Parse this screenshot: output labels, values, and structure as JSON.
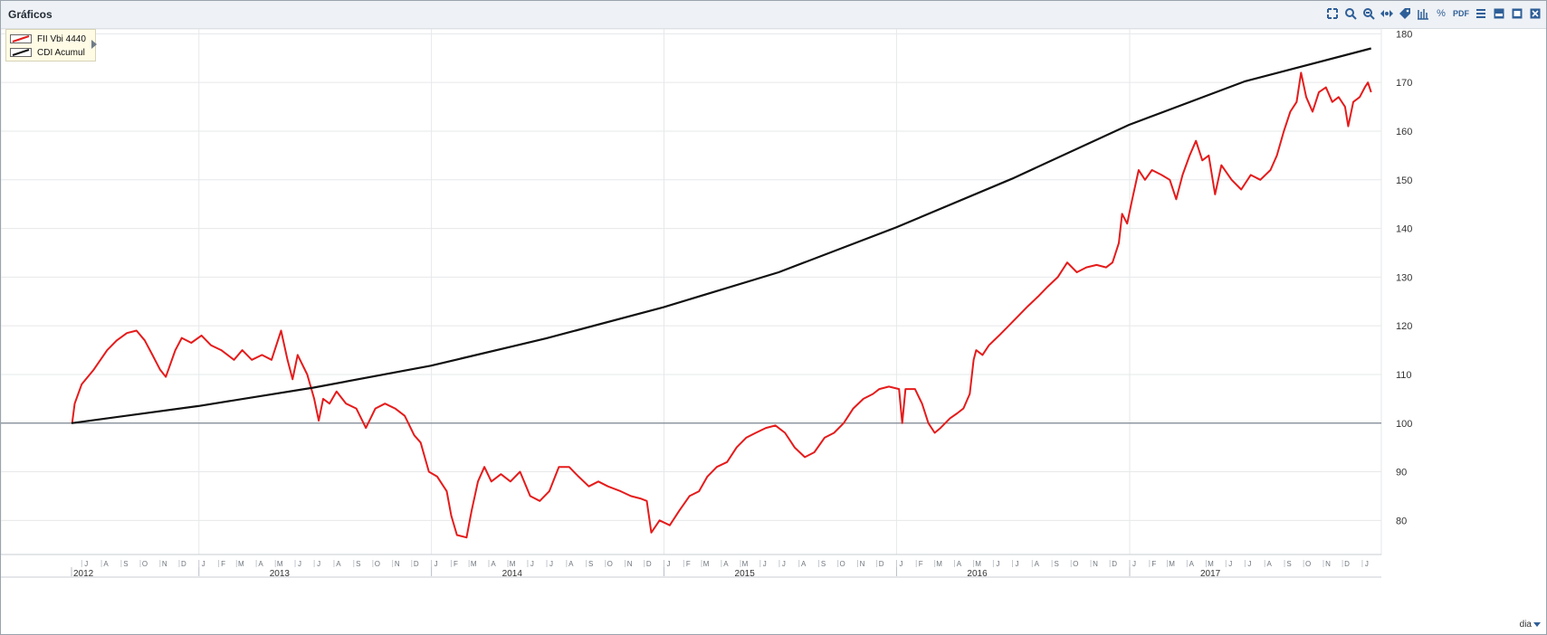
{
  "window": {
    "title": "Gráficos"
  },
  "toolbar": {
    "icons": [
      "expand-icon",
      "zoom-in-icon",
      "zoom-out-icon",
      "pan-icon",
      "tag-icon",
      "candles-icon",
      "percent-icon",
      "pdf-icon",
      "menu-icon",
      "restore-icon",
      "maximize-icon",
      "close-icon"
    ],
    "pdf_label": "PDF",
    "percent_label": "%"
  },
  "legend": {
    "items": [
      {
        "name": "FII Vbi 4440",
        "color": "#e51b1b"
      },
      {
        "name": "CDI Acumul",
        "color": "#111111"
      }
    ]
  },
  "period_selector": {
    "value": "dia"
  },
  "chart_data": {
    "type": "line",
    "xlim": [
      "2012-06-15",
      "2018-01-31"
    ],
    "ylim": [
      73,
      181
    ],
    "y_ticks": [
      80,
      90,
      100,
      110,
      120,
      130,
      140,
      150,
      160,
      170,
      180
    ],
    "reference_line": 100,
    "grid": true,
    "legend_placement": "top-left",
    "x_month_labels": [
      {
        "date": "2012-07-01",
        "label": "J"
      },
      {
        "date": "2012-08-01",
        "label": "A"
      },
      {
        "date": "2012-09-01",
        "label": "S"
      },
      {
        "date": "2012-10-01",
        "label": "O"
      },
      {
        "date": "2012-11-01",
        "label": "N"
      },
      {
        "date": "2012-12-01",
        "label": "D"
      },
      {
        "date": "2013-01-01",
        "label": "J"
      },
      {
        "date": "2013-02-01",
        "label": "F"
      },
      {
        "date": "2013-03-01",
        "label": "M"
      },
      {
        "date": "2013-04-01",
        "label": "A"
      },
      {
        "date": "2013-05-01",
        "label": "M"
      },
      {
        "date": "2013-06-01",
        "label": "J"
      },
      {
        "date": "2013-07-01",
        "label": "J"
      },
      {
        "date": "2013-08-01",
        "label": "A"
      },
      {
        "date": "2013-09-01",
        "label": "S"
      },
      {
        "date": "2013-10-01",
        "label": "O"
      },
      {
        "date": "2013-11-01",
        "label": "N"
      },
      {
        "date": "2013-12-01",
        "label": "D"
      },
      {
        "date": "2014-01-01",
        "label": "J"
      },
      {
        "date": "2014-02-01",
        "label": "F"
      },
      {
        "date": "2014-03-01",
        "label": "M"
      },
      {
        "date": "2014-04-01",
        "label": "A"
      },
      {
        "date": "2014-05-01",
        "label": "M"
      },
      {
        "date": "2014-06-01",
        "label": "J"
      },
      {
        "date": "2014-07-01",
        "label": "J"
      },
      {
        "date": "2014-08-01",
        "label": "A"
      },
      {
        "date": "2014-09-01",
        "label": "S"
      },
      {
        "date": "2014-10-01",
        "label": "O"
      },
      {
        "date": "2014-11-01",
        "label": "N"
      },
      {
        "date": "2014-12-01",
        "label": "D"
      },
      {
        "date": "2015-01-01",
        "label": "J"
      },
      {
        "date": "2015-02-01",
        "label": "F"
      },
      {
        "date": "2015-03-01",
        "label": "M"
      },
      {
        "date": "2015-04-01",
        "label": "A"
      },
      {
        "date": "2015-05-01",
        "label": "M"
      },
      {
        "date": "2015-06-01",
        "label": "J"
      },
      {
        "date": "2015-07-01",
        "label": "J"
      },
      {
        "date": "2015-08-01",
        "label": "A"
      },
      {
        "date": "2015-09-01",
        "label": "S"
      },
      {
        "date": "2015-10-01",
        "label": "O"
      },
      {
        "date": "2015-11-01",
        "label": "N"
      },
      {
        "date": "2015-12-01",
        "label": "D"
      },
      {
        "date": "2016-01-01",
        "label": "J"
      },
      {
        "date": "2016-02-01",
        "label": "F"
      },
      {
        "date": "2016-03-01",
        "label": "M"
      },
      {
        "date": "2016-04-01",
        "label": "A"
      },
      {
        "date": "2016-05-01",
        "label": "M"
      },
      {
        "date": "2016-06-01",
        "label": "J"
      },
      {
        "date": "2016-07-01",
        "label": "J"
      },
      {
        "date": "2016-08-01",
        "label": "A"
      },
      {
        "date": "2016-09-01",
        "label": "S"
      },
      {
        "date": "2016-10-01",
        "label": "O"
      },
      {
        "date": "2016-11-01",
        "label": "N"
      },
      {
        "date": "2016-12-01",
        "label": "D"
      },
      {
        "date": "2017-01-01",
        "label": "J"
      },
      {
        "date": "2017-02-01",
        "label": "F"
      },
      {
        "date": "2017-03-01",
        "label": "M"
      },
      {
        "date": "2017-04-01",
        "label": "A"
      },
      {
        "date": "2017-05-01",
        "label": "M"
      },
      {
        "date": "2017-06-01",
        "label": "J"
      },
      {
        "date": "2017-07-01",
        "label": "J"
      },
      {
        "date": "2017-08-01",
        "label": "A"
      },
      {
        "date": "2017-09-01",
        "label": "S"
      },
      {
        "date": "2017-10-01",
        "label": "O"
      },
      {
        "date": "2017-11-01",
        "label": "N"
      },
      {
        "date": "2017-12-01",
        "label": "D"
      },
      {
        "date": "2018-01-01",
        "label": "J"
      }
    ],
    "x_year_labels": [
      {
        "date": "2012-06-15",
        "label": "2012"
      },
      {
        "date": "2013-01-01",
        "label": "2013"
      },
      {
        "date": "2014-01-01",
        "label": "2014"
      },
      {
        "date": "2015-01-01",
        "label": "2015"
      },
      {
        "date": "2016-01-01",
        "label": "2016"
      },
      {
        "date": "2017-01-01",
        "label": "2017"
      }
    ],
    "series": [
      {
        "name": "FII Vbi 4440",
        "color": "#e51b1b",
        "points": [
          [
            "2012-06-16",
            100
          ],
          [
            "2012-06-20",
            104
          ],
          [
            "2012-07-01",
            108
          ],
          [
            "2012-07-20",
            111
          ],
          [
            "2012-08-10",
            115
          ],
          [
            "2012-08-25",
            117
          ],
          [
            "2012-09-10",
            118.5
          ],
          [
            "2012-09-25",
            119
          ],
          [
            "2012-10-08",
            117
          ],
          [
            "2012-10-20",
            114
          ],
          [
            "2012-11-01",
            111
          ],
          [
            "2012-11-10",
            109.5
          ],
          [
            "2012-11-25",
            115
          ],
          [
            "2012-12-05",
            117.5
          ],
          [
            "2012-12-20",
            116.5
          ],
          [
            "2013-01-05",
            118
          ],
          [
            "2013-01-20",
            116
          ],
          [
            "2013-02-05",
            115
          ],
          [
            "2013-02-25",
            113
          ],
          [
            "2013-03-10",
            115
          ],
          [
            "2013-03-25",
            113
          ],
          [
            "2013-04-10",
            114
          ],
          [
            "2013-04-25",
            113
          ],
          [
            "2013-05-05",
            117
          ],
          [
            "2013-05-10",
            119
          ],
          [
            "2013-05-20",
            113
          ],
          [
            "2013-05-28",
            109
          ],
          [
            "2013-06-05",
            114
          ],
          [
            "2013-06-20",
            110
          ],
          [
            "2013-07-01",
            105
          ],
          [
            "2013-07-08",
            100.5
          ],
          [
            "2013-07-15",
            105
          ],
          [
            "2013-07-25",
            104
          ],
          [
            "2013-08-05",
            106.5
          ],
          [
            "2013-08-20",
            104
          ],
          [
            "2013-09-05",
            103
          ],
          [
            "2013-09-20",
            99
          ],
          [
            "2013-10-05",
            103
          ],
          [
            "2013-10-20",
            104
          ],
          [
            "2013-11-05",
            103
          ],
          [
            "2013-11-20",
            101.5
          ],
          [
            "2013-12-05",
            97.5
          ],
          [
            "2013-12-15",
            96
          ],
          [
            "2013-12-28",
            90
          ],
          [
            "2014-01-10",
            89
          ],
          [
            "2014-01-25",
            86
          ],
          [
            "2014-02-01",
            81
          ],
          [
            "2014-02-10",
            77
          ],
          [
            "2014-02-25",
            76.5
          ],
          [
            "2014-03-05",
            82
          ],
          [
            "2014-03-15",
            88
          ],
          [
            "2014-03-25",
            91
          ],
          [
            "2014-04-05",
            88
          ],
          [
            "2014-04-20",
            89.5
          ],
          [
            "2014-05-05",
            88
          ],
          [
            "2014-05-20",
            90
          ],
          [
            "2014-06-05",
            85
          ],
          [
            "2014-06-20",
            84
          ],
          [
            "2014-07-05",
            86
          ],
          [
            "2014-07-20",
            91
          ],
          [
            "2014-08-05",
            91
          ],
          [
            "2014-08-20",
            89
          ],
          [
            "2014-09-05",
            87
          ],
          [
            "2014-09-20",
            88
          ],
          [
            "2014-10-05",
            87
          ],
          [
            "2014-10-25",
            86
          ],
          [
            "2014-11-10",
            85
          ],
          [
            "2014-11-25",
            84.5
          ],
          [
            "2014-12-05",
            84
          ],
          [
            "2014-12-12",
            77.5
          ],
          [
            "2014-12-25",
            80
          ],
          [
            "2015-01-10",
            79
          ],
          [
            "2015-01-25",
            82
          ],
          [
            "2015-02-10",
            85
          ],
          [
            "2015-02-25",
            86
          ],
          [
            "2015-03-10",
            89
          ],
          [
            "2015-03-25",
            91
          ],
          [
            "2015-04-10",
            92
          ],
          [
            "2015-04-25",
            95
          ],
          [
            "2015-05-10",
            97
          ],
          [
            "2015-05-25",
            98
          ],
          [
            "2015-06-10",
            99
          ],
          [
            "2015-06-25",
            99.5
          ],
          [
            "2015-07-10",
            98
          ],
          [
            "2015-07-25",
            95
          ],
          [
            "2015-08-10",
            93
          ],
          [
            "2015-08-25",
            94
          ],
          [
            "2015-09-10",
            97
          ],
          [
            "2015-09-25",
            98
          ],
          [
            "2015-10-10",
            100
          ],
          [
            "2015-10-25",
            103
          ],
          [
            "2015-11-10",
            105
          ],
          [
            "2015-11-25",
            106
          ],
          [
            "2015-12-05",
            107
          ],
          [
            "2015-12-20",
            107.5
          ],
          [
            "2016-01-05",
            107
          ],
          [
            "2016-01-10",
            100
          ],
          [
            "2016-01-15",
            107
          ],
          [
            "2016-01-30",
            107
          ],
          [
            "2016-02-10",
            104
          ],
          [
            "2016-02-20",
            100
          ],
          [
            "2016-03-01",
            98
          ],
          [
            "2016-03-10",
            99
          ],
          [
            "2016-03-25",
            101
          ],
          [
            "2016-04-05",
            102
          ],
          [
            "2016-04-15",
            103
          ],
          [
            "2016-04-25",
            106
          ],
          [
            "2016-05-01",
            113
          ],
          [
            "2016-05-05",
            115
          ],
          [
            "2016-05-15",
            114
          ],
          [
            "2016-05-25",
            116
          ],
          [
            "2016-06-10",
            118
          ],
          [
            "2016-06-25",
            120
          ],
          [
            "2016-07-10",
            122
          ],
          [
            "2016-07-25",
            124
          ],
          [
            "2016-08-10",
            126
          ],
          [
            "2016-08-25",
            128
          ],
          [
            "2016-09-10",
            130
          ],
          [
            "2016-09-25",
            133
          ],
          [
            "2016-10-10",
            131
          ],
          [
            "2016-10-25",
            132
          ],
          [
            "2016-11-10",
            132.5
          ],
          [
            "2016-11-25",
            132
          ],
          [
            "2016-12-05",
            133
          ],
          [
            "2016-12-15",
            137
          ],
          [
            "2016-12-20",
            143
          ],
          [
            "2016-12-28",
            141
          ],
          [
            "2017-01-05",
            146
          ],
          [
            "2017-01-15",
            152
          ],
          [
            "2017-01-25",
            150
          ],
          [
            "2017-02-05",
            152
          ],
          [
            "2017-02-20",
            151
          ],
          [
            "2017-03-05",
            150
          ],
          [
            "2017-03-15",
            146
          ],
          [
            "2017-03-25",
            151
          ],
          [
            "2017-04-05",
            155
          ],
          [
            "2017-04-15",
            158
          ],
          [
            "2017-04-25",
            154
          ],
          [
            "2017-05-05",
            155
          ],
          [
            "2017-05-15",
            147
          ],
          [
            "2017-05-25",
            153
          ],
          [
            "2017-06-10",
            150
          ],
          [
            "2017-06-25",
            148
          ],
          [
            "2017-07-10",
            151
          ],
          [
            "2017-07-25",
            150
          ],
          [
            "2017-08-10",
            152
          ],
          [
            "2017-08-20",
            155
          ],
          [
            "2017-08-31",
            160
          ],
          [
            "2017-09-10",
            164
          ],
          [
            "2017-09-20",
            166
          ],
          [
            "2017-09-27",
            172
          ],
          [
            "2017-10-05",
            167
          ],
          [
            "2017-10-15",
            164
          ],
          [
            "2017-10-25",
            168
          ],
          [
            "2017-11-05",
            169
          ],
          [
            "2017-11-15",
            166
          ],
          [
            "2017-11-25",
            167
          ],
          [
            "2017-12-05",
            165
          ],
          [
            "2017-12-10",
            161
          ],
          [
            "2017-12-18",
            166
          ],
          [
            "2017-12-28",
            167
          ],
          [
            "2018-01-05",
            169
          ],
          [
            "2018-01-10",
            170
          ],
          [
            "2018-01-15",
            168
          ]
        ]
      },
      {
        "name": "CDI Acumul",
        "color": "#111111",
        "points": [
          [
            "2012-06-15",
            100
          ],
          [
            "2012-12-31",
            103.5
          ],
          [
            "2013-06-30",
            107.3
          ],
          [
            "2013-12-31",
            111.8
          ],
          [
            "2014-06-30",
            117.4
          ],
          [
            "2014-12-31",
            123.8
          ],
          [
            "2015-06-30",
            131
          ],
          [
            "2015-12-31",
            140.2
          ],
          [
            "2016-06-30",
            150.2
          ],
          [
            "2016-12-31",
            161.3
          ],
          [
            "2017-06-30",
            170.2
          ],
          [
            "2018-01-15",
            177
          ]
        ]
      }
    ]
  }
}
